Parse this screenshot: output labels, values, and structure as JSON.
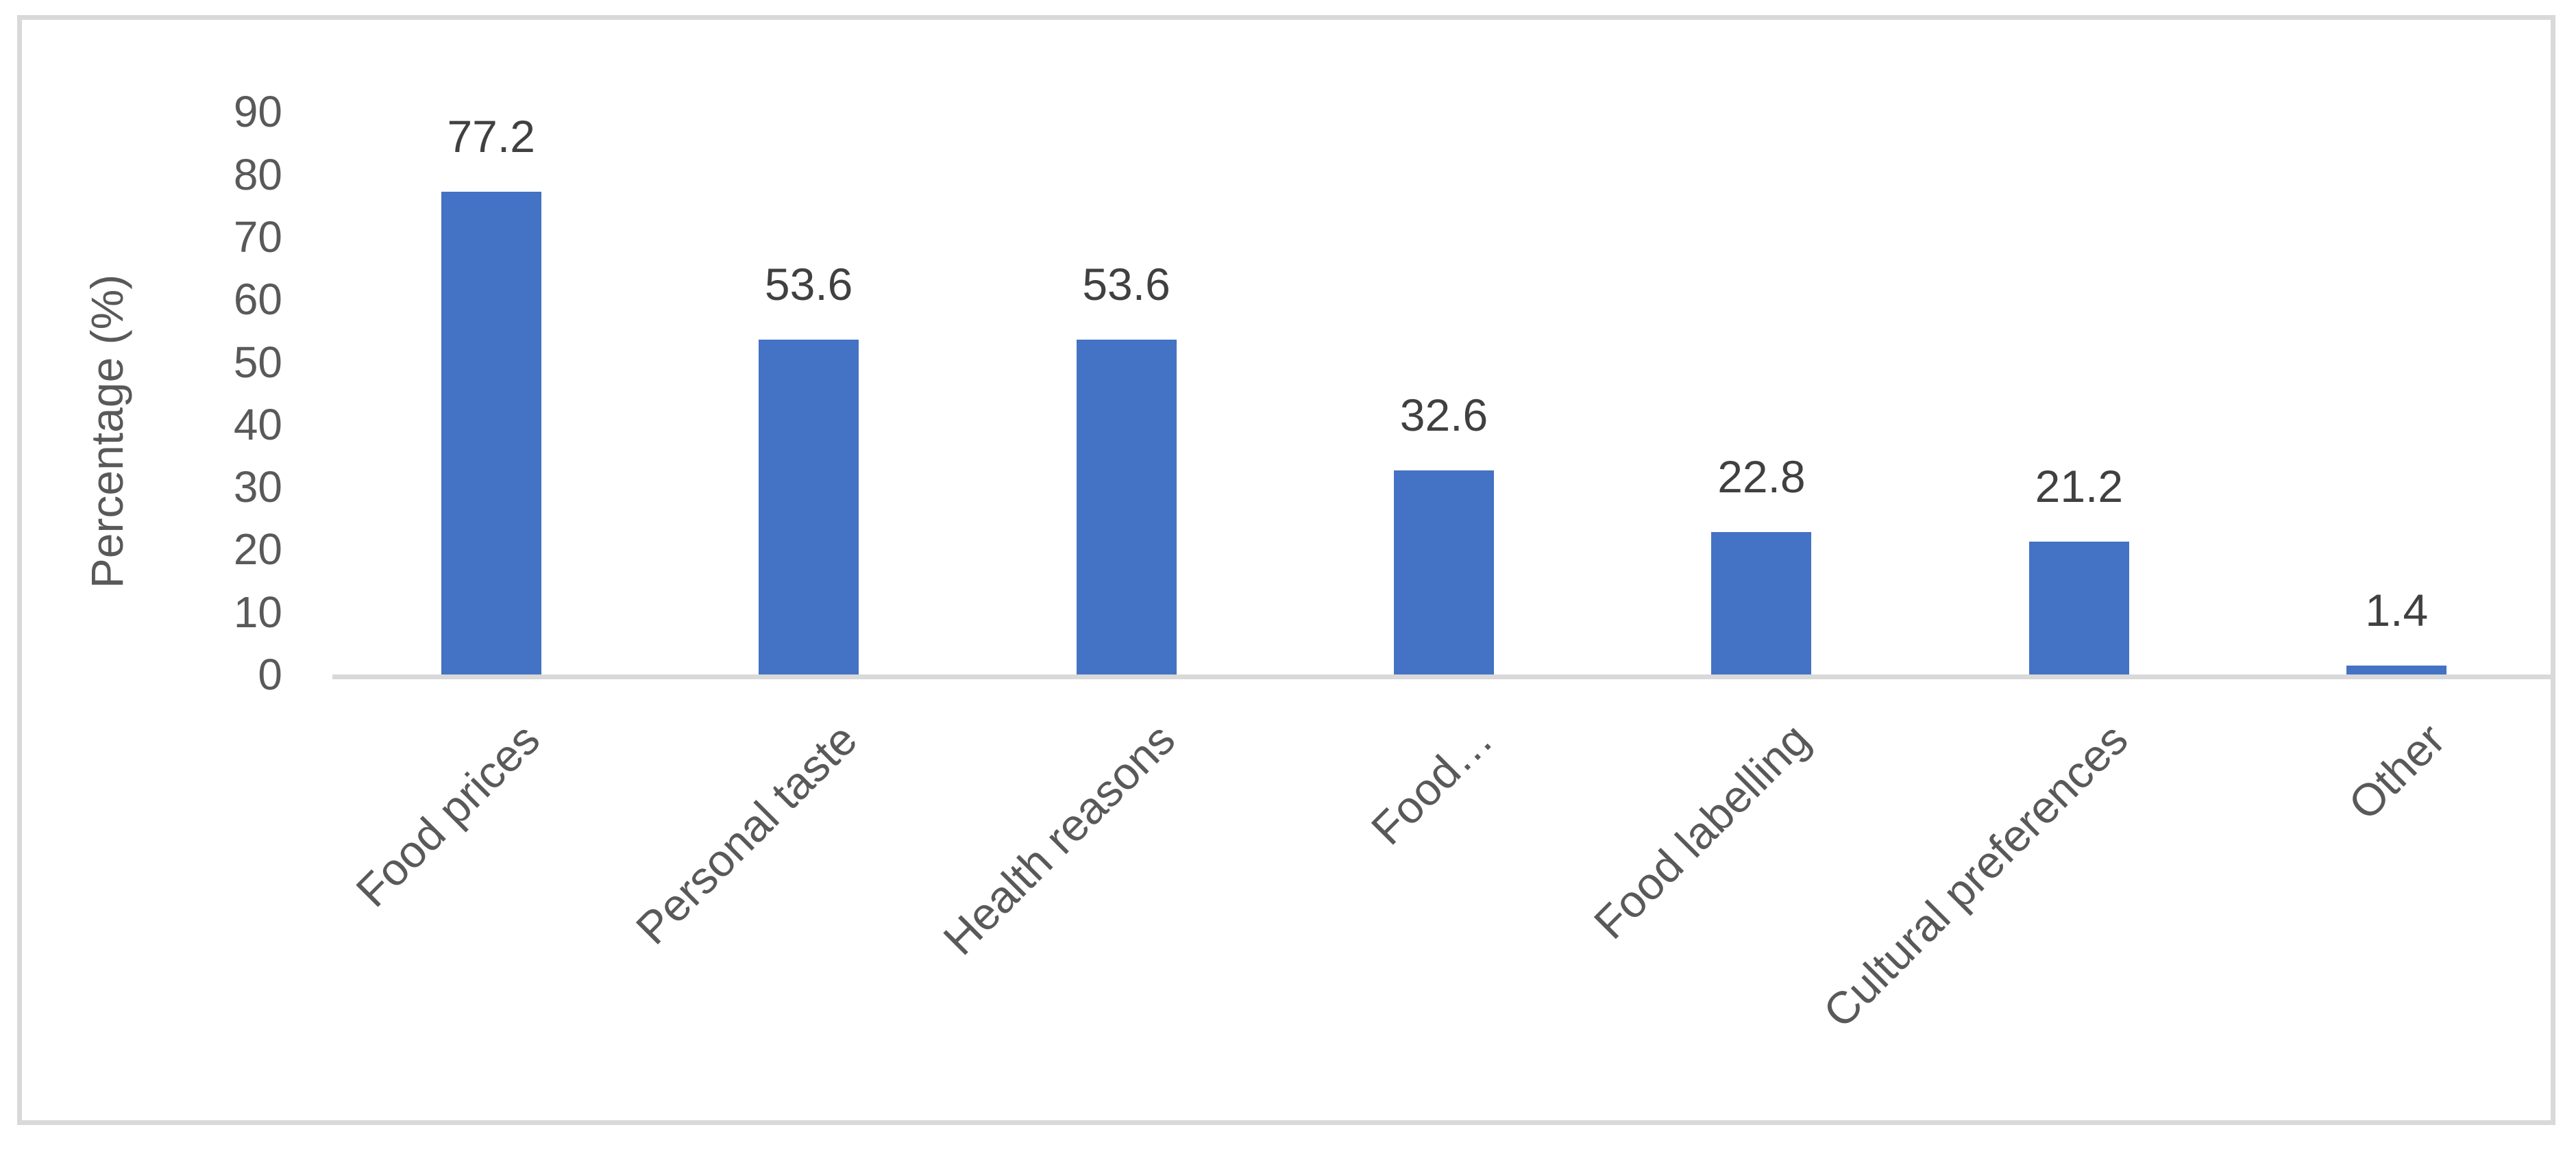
{
  "chart_data": {
    "type": "bar",
    "title": "",
    "xlabel": "",
    "ylabel": "Percentage (%)",
    "categories": [
      "Food prices",
      "Personal taste",
      "Health reasons",
      "Food…",
      "Food labelling",
      "Cultural preferences",
      "Other"
    ],
    "values": [
      77.2,
      53.6,
      53.6,
      32.6,
      22.8,
      21.2,
      1.4
    ],
    "data_labels": [
      "77.2",
      "53.6",
      "53.6",
      "32.6",
      "22.8",
      "21.2",
      "1.4"
    ],
    "ylim": [
      0,
      90
    ],
    "ytick_step": 10,
    "yticks": [
      90,
      80,
      70,
      60,
      50,
      40,
      30,
      20,
      10,
      0
    ],
    "grid": "off",
    "legend": "none",
    "category_label_rotation_deg": 45,
    "colors": {
      "bar": "#4472C4",
      "axis_line": "#d9d9d9",
      "chart_border": "#d9d9d9",
      "tick_label": "#595959",
      "category_label": "#595959",
      "data_label": "#404040",
      "axis_title": "#595959",
      "background": "#ffffff"
    }
  }
}
